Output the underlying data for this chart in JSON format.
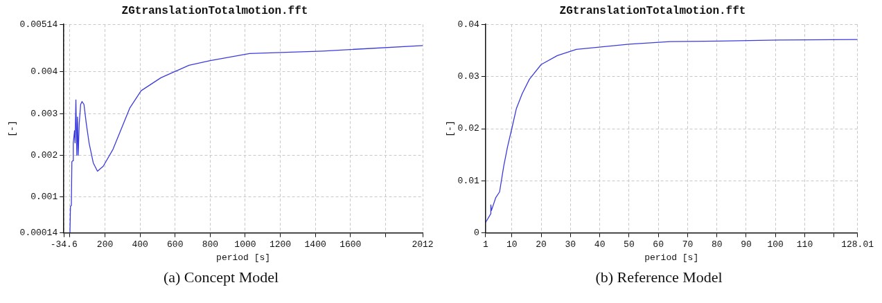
{
  "chart_data": [
    {
      "type": "line",
      "title": "ZGtranslationTotalmotion.fft",
      "xlabel": "period [s]",
      "ylabel": "[-]",
      "annotations": [
        "(a) Concept Model"
      ],
      "grid": true,
      "marker": "none",
      "line_style": "solid",
      "xlim": [
        -34.6,
        2012
      ],
      "xticks": [
        -34.6,
        {
          "value": 0,
          "label": null
        },
        200,
        400,
        600,
        800,
        1000,
        1200,
        1400,
        1600,
        {
          "value": 1800,
          "label": null
        },
        2012
      ],
      "ylim": [
        0.00014,
        0.00514
      ],
      "yticks": [
        0.00014,
        0.001,
        0.002,
        0.003,
        0.004,
        0.00514
      ],
      "series": [
        {
          "color": "#3b3bdc",
          "x": [
            0,
            3,
            8,
            11,
            16,
            19,
            26,
            29,
            34,
            39,
            43,
            47,
            53,
            61,
            69,
            80,
            93,
            109,
            133,
            157,
            190,
            246,
            342,
            406,
            519,
            679,
            800,
            1025,
            1442,
            2012
          ],
          "values": [
            0.00015,
            0.00078,
            0.0008,
            0.00185,
            0.00187,
            0.0023,
            0.00259,
            0.0023,
            0.00333,
            0.002,
            0.00292,
            0.002,
            0.00277,
            0.00322,
            0.00329,
            0.00322,
            0.00277,
            0.0023,
            0.00182,
            0.00162,
            0.00174,
            0.00215,
            0.00314,
            0.00355,
            0.00386,
            0.00416,
            0.00427,
            0.00444,
            0.0045,
            0.00463
          ]
        }
      ]
    },
    {
      "type": "line",
      "title": "ZGtranslationTotalmotion.fft",
      "xlabel": "period [s]",
      "ylabel": "[-]",
      "annotations": [
        "(b) Reference Model"
      ],
      "grid": true,
      "marker": "none",
      "line_style": "solid",
      "xlim": [
        1,
        128.01
      ],
      "xticks": [
        1,
        10,
        20,
        30,
        40,
        50,
        60,
        70,
        80,
        90,
        100,
        110,
        {
          "value": 120,
          "label": null
        },
        128.01
      ],
      "ylim": [
        0,
        0.04
      ],
      "yticks": [
        0,
        0.01,
        0.02,
        0.03,
        0.04
      ],
      "series": [
        {
          "color": "#3b3bdc",
          "x": [
            1,
            2.8,
            2.8,
            3,
            4.5,
            5.8,
            7.2,
            8.5,
            10,
            11.5,
            13.5,
            16,
            20,
            25.5,
            32,
            41,
            50,
            64,
            81,
            101,
            128.01
          ],
          "values": [
            0.002,
            0.0037,
            0.0054,
            0.0043,
            0.0068,
            0.0079,
            0.0128,
            0.0165,
            0.0201,
            0.0238,
            0.0267,
            0.0295,
            0.0323,
            0.034,
            0.0352,
            0.0357,
            0.0362,
            0.0367,
            0.0368,
            0.037,
            0.0371
          ]
        }
      ]
    }
  ]
}
